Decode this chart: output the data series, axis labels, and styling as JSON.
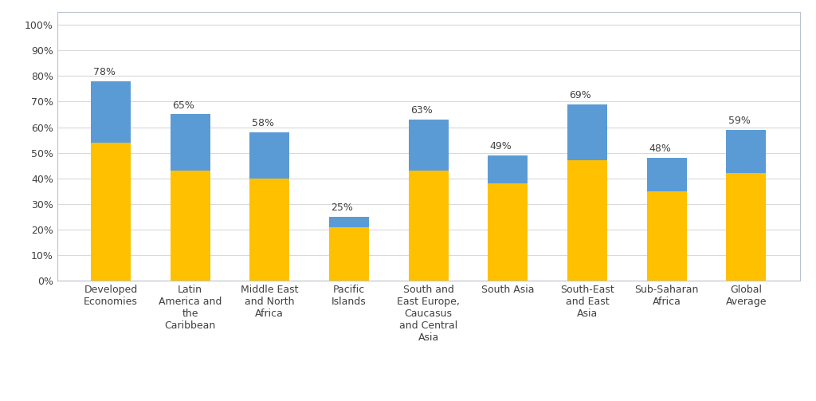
{
  "categories": [
    "Developed\nEconomies",
    "Latin\nAmerica and\nthe\nCaribbean",
    "Middle East\nand North\nAfrica",
    "Pacific\nIslands",
    "South and\nEast Europe,\nCaucasus\nand Central\nAsia",
    "South Asia",
    "South-East\nand East\nAsia",
    "Sub-Saharan\nAfrica",
    "Global\nAverage"
  ],
  "paperless_trade": [
    54,
    43,
    40,
    21,
    43,
    38,
    47,
    35,
    42
  ],
  "cross_border": [
    24,
    22,
    18,
    4,
    20,
    11,
    22,
    13,
    17
  ],
  "totals": [
    78,
    65,
    58,
    25,
    63,
    49,
    69,
    48,
    59
  ],
  "yellow_color": "#FFC000",
  "blue_color": "#5B9BD5",
  "background_color": "#FFFFFF",
  "grid_color": "#D9D9D9",
  "border_color": "#AAAACC",
  "ylabel_ticks": [
    "0%",
    "10%",
    "20%",
    "30%",
    "40%",
    "50%",
    "60%",
    "70%",
    "80%",
    "90%",
    "100%"
  ],
  "ytick_values": [
    0,
    10,
    20,
    30,
    40,
    50,
    60,
    70,
    80,
    90,
    100
  ],
  "label_fontsize": 9,
  "tick_fontsize": 9,
  "bar_width": 0.5
}
